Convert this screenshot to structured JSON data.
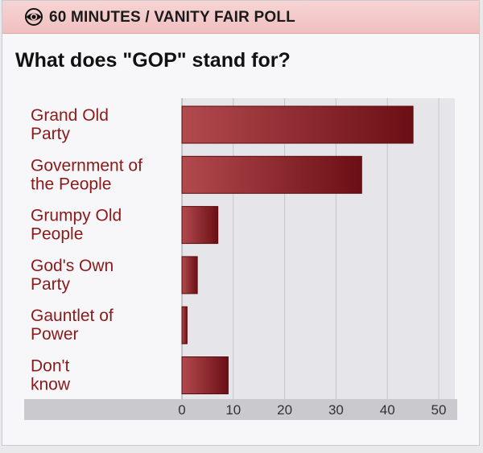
{
  "header": {
    "title": "60 MINUTES / VANITY FAIR POLL",
    "logo_icon": "cbs-eye-icon"
  },
  "question": "What does \"GOP\" stand for?",
  "colors": {
    "bar_dark": "#6b0f14",
    "bar_light": "#b24a4e",
    "label": "#8b1a1a",
    "header_bg": "#f2c6c6"
  },
  "chart_data": {
    "type": "bar",
    "orientation": "horizontal",
    "categories": [
      [
        "Grand Old",
        "Party"
      ],
      [
        "Government of",
        "the People"
      ],
      [
        "Grumpy Old",
        "People"
      ],
      [
        "God's Own",
        "Party"
      ],
      [
        "Gauntlet of",
        "Power"
      ],
      [
        "Don't",
        "know"
      ]
    ],
    "values": [
      45,
      35,
      7,
      3,
      1,
      9
    ],
    "xlim": [
      0,
      50
    ],
    "ticks": [
      "0",
      "10",
      "20",
      "30",
      "40",
      "50"
    ],
    "grid": true,
    "title": "",
    "xlabel": "",
    "ylabel": ""
  }
}
